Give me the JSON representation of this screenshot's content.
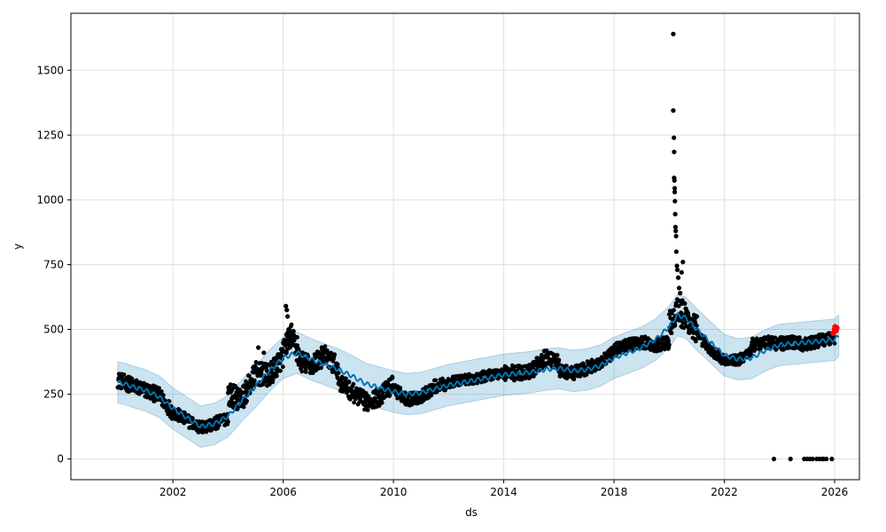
{
  "chart_data": {
    "type": "scatter",
    "title": "",
    "xlabel": "ds",
    "ylabel": "y",
    "xlim": [
      1998.3,
      2026.9
    ],
    "ylim": [
      -80,
      1720
    ],
    "x_ticks": [
      2002,
      2006,
      2010,
      2014,
      2018,
      2022,
      2026
    ],
    "x_tick_labels": [
      "2002",
      "2006",
      "2010",
      "2014",
      "2018",
      "2022",
      "2026"
    ],
    "y_ticks": [
      0,
      250,
      500,
      750,
      1000,
      1250,
      1500
    ],
    "y_tick_labels": [
      "0",
      "250",
      "500",
      "750",
      "1000",
      "1250",
      "1500"
    ],
    "grid": true,
    "colors": {
      "observed": "#000000",
      "forecast": "#0072B2",
      "interval": "#0072B2",
      "recent": "#ff0000",
      "grid": "#e0e0e0"
    },
    "forecast": {
      "x": [
        2000.0,
        2000.25,
        2000.5,
        2001.0,
        2001.5,
        2002.0,
        2002.5,
        2003.0,
        2003.5,
        2004.0,
        2004.5,
        2005.0,
        2005.5,
        2006.0,
        2006.5,
        2007.0,
        2007.5,
        2008.0,
        2008.5,
        2009.0,
        2009.5,
        2010.0,
        2010.5,
        2011.0,
        2011.5,
        2012.0,
        2012.5,
        2013.0,
        2013.5,
        2014.0,
        2014.5,
        2015.0,
        2015.5,
        2016.0,
        2016.5,
        2017.0,
        2017.5,
        2018.0,
        2018.5,
        2019.0,
        2019.5,
        2020.0,
        2020.3,
        2020.6,
        2021.0,
        2021.5,
        2022.0,
        2022.5,
        2023.0,
        2023.5,
        2024.0,
        2024.5,
        2025.0,
        2025.5,
        2026.0,
        2026.15
      ],
      "y": [
        295,
        290,
        280,
        265,
        240,
        195,
        160,
        125,
        135,
        165,
        225,
        280,
        340,
        390,
        410,
        385,
        365,
        345,
        320,
        290,
        275,
        260,
        250,
        255,
        270,
        285,
        295,
        305,
        315,
        325,
        330,
        335,
        345,
        350,
        340,
        345,
        360,
        390,
        410,
        430,
        460,
        510,
        555,
        545,
        500,
        450,
        400,
        385,
        390,
        420,
        440,
        445,
        450,
        455,
        460,
        475
      ],
      "lower": [
        215,
        210,
        200,
        185,
        160,
        115,
        80,
        45,
        55,
        85,
        145,
        200,
        260,
        310,
        330,
        305,
        285,
        265,
        240,
        210,
        195,
        180,
        170,
        175,
        190,
        205,
        215,
        225,
        235,
        245,
        250,
        255,
        265,
        270,
        260,
        265,
        280,
        310,
        330,
        350,
        380,
        430,
        475,
        465,
        420,
        370,
        320,
        305,
        310,
        340,
        360,
        365,
        370,
        375,
        380,
        395
      ],
      "upper": [
        375,
        370,
        360,
        345,
        320,
        275,
        240,
        205,
        215,
        245,
        305,
        360,
        420,
        470,
        490,
        465,
        445,
        425,
        400,
        370,
        355,
        340,
        330,
        335,
        350,
        365,
        375,
        385,
        395,
        405,
        410,
        415,
        425,
        430,
        420,
        425,
        440,
        470,
        490,
        510,
        540,
        590,
        635,
        625,
        580,
        530,
        480,
        465,
        470,
        500,
        520,
        525,
        530,
        535,
        540,
        555
      ]
    },
    "observed_segments": [
      {
        "x": [
          2000.0,
          2000.5,
          2001.0,
          2001.5,
          2002.0
        ],
        "y": [
          305,
          285,
          265,
          245,
          180
        ],
        "noise": 30
      },
      {
        "x": [
          2002.0,
          2002.5,
          2003.0,
          2003.5,
          2004.0
        ],
        "y": [
          180,
          150,
          120,
          135,
          160
        ],
        "noise": 25
      },
      {
        "x": [
          2004.0,
          2004.5,
          2005.0,
          2005.5,
          2006.0
        ],
        "y": [
          250,
          230,
          330,
          320,
          400
        ],
        "noise": 45
      },
      {
        "x": [
          2006.0,
          2006.3,
          2006.6,
          2007.0,
          2007.5,
          2008.0
        ],
        "y": [
          420,
          480,
          380,
          360,
          400,
          350
        ],
        "noise": 40
      },
      {
        "x": [
          2008.0,
          2008.6,
          2009.0,
          2009.5,
          2010.0
        ],
        "y": [
          300,
          250,
          220,
          240,
          290
        ],
        "noise": 35
      },
      {
        "x": [
          2010.0,
          2010.5,
          2011.0,
          2011.5,
          2012.0
        ],
        "y": [
          270,
          230,
          240,
          280,
          290
        ],
        "noise": 25
      },
      {
        "x": [
          2012.0,
          2012.5,
          2013.0,
          2013.5,
          2014.0
        ],
        "y": [
          295,
          305,
          310,
          325,
          330
        ],
        "noise": 20
      },
      {
        "x": [
          2014.0,
          2014.5,
          2015.0,
          2015.5,
          2016.0
        ],
        "y": [
          335,
          330,
          340,
          390,
          370
        ],
        "noise": 30
      },
      {
        "x": [
          2016.0,
          2016.5,
          2017.0,
          2017.5,
          2018.0
        ],
        "y": [
          340,
          330,
          350,
          370,
          410
        ],
        "noise": 25
      },
      {
        "x": [
          2018.0,
          2018.5,
          2019.0,
          2019.5,
          2020.0
        ],
        "y": [
          420,
          440,
          450,
          440,
          450
        ],
        "noise": 25
      },
      {
        "x": [
          2020.0,
          2020.3,
          2020.6,
          2021.0
        ],
        "y": [
          520,
          580,
          540,
          500
        ],
        "noise": 60
      },
      {
        "x": [
          2021.0,
          2021.5,
          2022.0,
          2022.5,
          2023.0
        ],
        "y": [
          480,
          420,
          380,
          380,
          420
        ],
        "noise": 20
      },
      {
        "x": [
          2023.0,
          2023.5,
          2024.0,
          2024.5,
          2025.0,
          2025.5,
          2026.0
        ],
        "y": [
          440,
          450,
          445,
          450,
          440,
          460,
          470
        ],
        "noise": 25
      }
    ],
    "outliers": {
      "x": [
        2020.15,
        2020.15,
        2020.17,
        2020.18,
        2020.18,
        2020.19,
        2020.2,
        2020.2,
        2020.21,
        2020.22,
        2020.23,
        2020.24,
        2020.25,
        2020.26,
        2020.28,
        2020.3,
        2020.33,
        2020.36,
        2020.4,
        2020.45,
        2020.5,
        2020.55,
        2020.6,
        2020.68,
        2020.75,
        2020.85,
        2021.0,
        2006.1,
        2006.13,
        2006.16,
        2006.2,
        2006.25,
        2006.35,
        2006.5,
        2005.1,
        2005.3
      ],
      "y": [
        1640,
        1345,
        1240,
        1185,
        1085,
        1075,
        1045,
        1030,
        995,
        945,
        895,
        880,
        860,
        800,
        745,
        730,
        700,
        660,
        640,
        720,
        760,
        600,
        580,
        560,
        540,
        520,
        550,
        590,
        575,
        550,
        500,
        460,
        440,
        470,
        430,
        410
      ]
    },
    "zeros": {
      "x": [
        2023.8,
        2024.4,
        2024.9,
        2025.0,
        2025.1,
        2025.2,
        2025.35,
        2025.45,
        2025.55,
        2025.6,
        2025.7,
        2025.9
      ],
      "y": [
        0,
        0,
        0,
        0,
        0,
        0,
        0,
        0,
        0,
        0,
        0,
        0
      ]
    },
    "recent": {
      "x": [
        2025.95,
        2026.0,
        2026.02,
        2026.05,
        2026.08
      ],
      "y": [
        485,
        500,
        510,
        495,
        505
      ]
    }
  }
}
